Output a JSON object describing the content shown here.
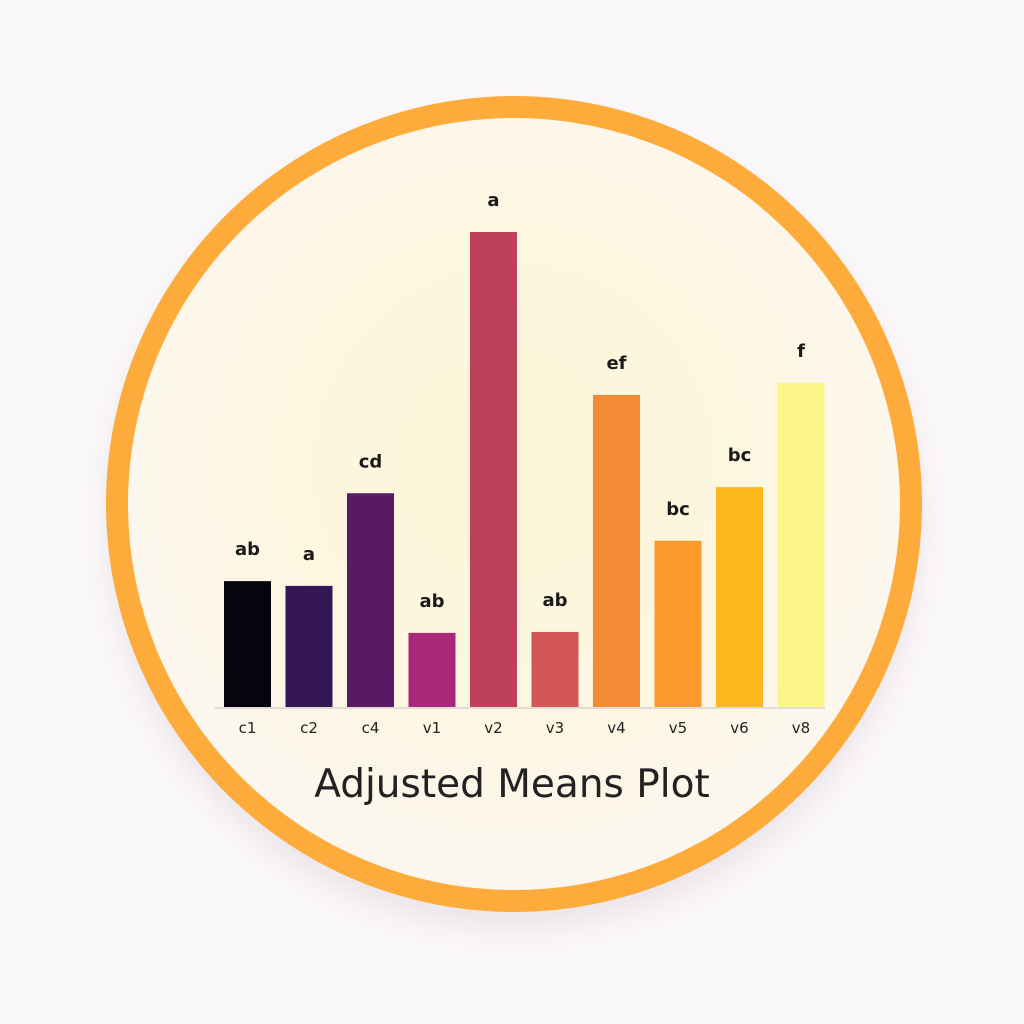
{
  "chart_data": {
    "type": "bar",
    "title": "Adjusted Means Plot",
    "xlabel": "",
    "ylabel": "",
    "categories": [
      "c1",
      "c2",
      "c4",
      "v1",
      "v2",
      "v3",
      "v4",
      "v5",
      "v6",
      "v8"
    ],
    "values": [
      26.5,
      25.5,
      45,
      15.6,
      100,
      15.8,
      65.7,
      35,
      46.3,
      68.2
    ],
    "group_letters": [
      "ab",
      "a",
      "cd",
      "ab",
      "a",
      "ab",
      "ef",
      "bc",
      "bc",
      "f"
    ],
    "ylim": [
      0,
      100
    ],
    "grid": false,
    "colors": [
      "#05040f",
      "#341556",
      "#5a1a63",
      "#a8287a",
      "#bf405a",
      "#d45555",
      "#f58a35",
      "#fb9a2a",
      "#fdb91c",
      "#fcf688"
    ]
  },
  "frame": {
    "ring_color": "#fdab3a"
  }
}
